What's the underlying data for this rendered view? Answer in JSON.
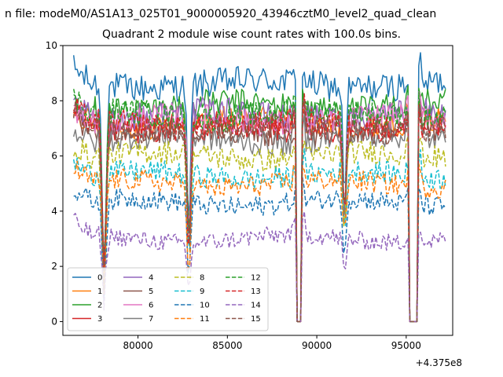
{
  "chart_data": {
    "type": "line",
    "suptitle": "n file: modeM0/AS1A13_025T01_9000005920_43946cztM0_level2_quad_clean",
    "title": "Quadrant 2 module wise count rates with 100.0s bins.",
    "xlabel": "",
    "ylabel": "",
    "x_offset_label": "+4.375e8",
    "x_offset": 437500000,
    "xlim": [
      75800,
      97600
    ],
    "ylim": [
      -0.5,
      10
    ],
    "x_ticks": [
      80000,
      85000,
      90000,
      95000
    ],
    "x_tick_labels": [
      "80000",
      "85000",
      "90000",
      "95000"
    ],
    "y_ticks": [
      0,
      2,
      4,
      6,
      8,
      10
    ],
    "y_tick_labels": [
      "0",
      "2",
      "4",
      "6",
      "8",
      "10"
    ],
    "bin_size_s": 100,
    "x_start": 76400,
    "x_end": 97200,
    "dips": [
      {
        "start": 77900,
        "end": 78300,
        "depth": 0.8
      },
      {
        "start": 82700,
        "end": 83000,
        "depth": 0.7
      },
      {
        "start": 91400,
        "end": 91700,
        "depth": 0.5
      }
    ],
    "gaps": [
      {
        "start": 88850,
        "end": 89100
      },
      {
        "start": 95150,
        "end": 95650
      }
    ],
    "legend": {
      "location": "lower-left",
      "columns": 4
    },
    "series": [
      {
        "name": "0",
        "level": 8.6,
        "color": "#1f77b4",
        "dash": "solid"
      },
      {
        "name": "1",
        "level": 7.2,
        "color": "#ff7f0e",
        "dash": "solid"
      },
      {
        "name": "2",
        "level": 7.8,
        "color": "#2ca02c",
        "dash": "solid"
      },
      {
        "name": "3",
        "level": 7.0,
        "color": "#d62728",
        "dash": "solid"
      },
      {
        "name": "4",
        "level": 7.5,
        "color": "#9467bd",
        "dash": "solid"
      },
      {
        "name": "5",
        "level": 6.9,
        "color": "#8c564b",
        "dash": "solid"
      },
      {
        "name": "6",
        "level": 7.3,
        "color": "#e377c2",
        "dash": "solid"
      },
      {
        "name": "7",
        "level": 6.6,
        "color": "#7f7f7f",
        "dash": "solid"
      },
      {
        "name": "8",
        "level": 6.0,
        "color": "#bcbd22",
        "dash": "dashed"
      },
      {
        "name": "9",
        "level": 5.3,
        "color": "#17becf",
        "dash": "dashed"
      },
      {
        "name": "10",
        "level": 4.3,
        "color": "#1f77b4",
        "dash": "dashed"
      },
      {
        "name": "11",
        "level": 5.0,
        "color": "#ff7f0e",
        "dash": "dashed"
      },
      {
        "name": "12",
        "level": 7.5,
        "color": "#2ca02c",
        "dash": "dashed"
      },
      {
        "name": "13",
        "level": 7.1,
        "color": "#d62728",
        "dash": "dashed"
      },
      {
        "name": "14",
        "level": 3.0,
        "color": "#9467bd",
        "dash": "dashed"
      },
      {
        "name": "15",
        "level": 7.0,
        "color": "#8c564b",
        "dash": "dashed"
      }
    ]
  }
}
